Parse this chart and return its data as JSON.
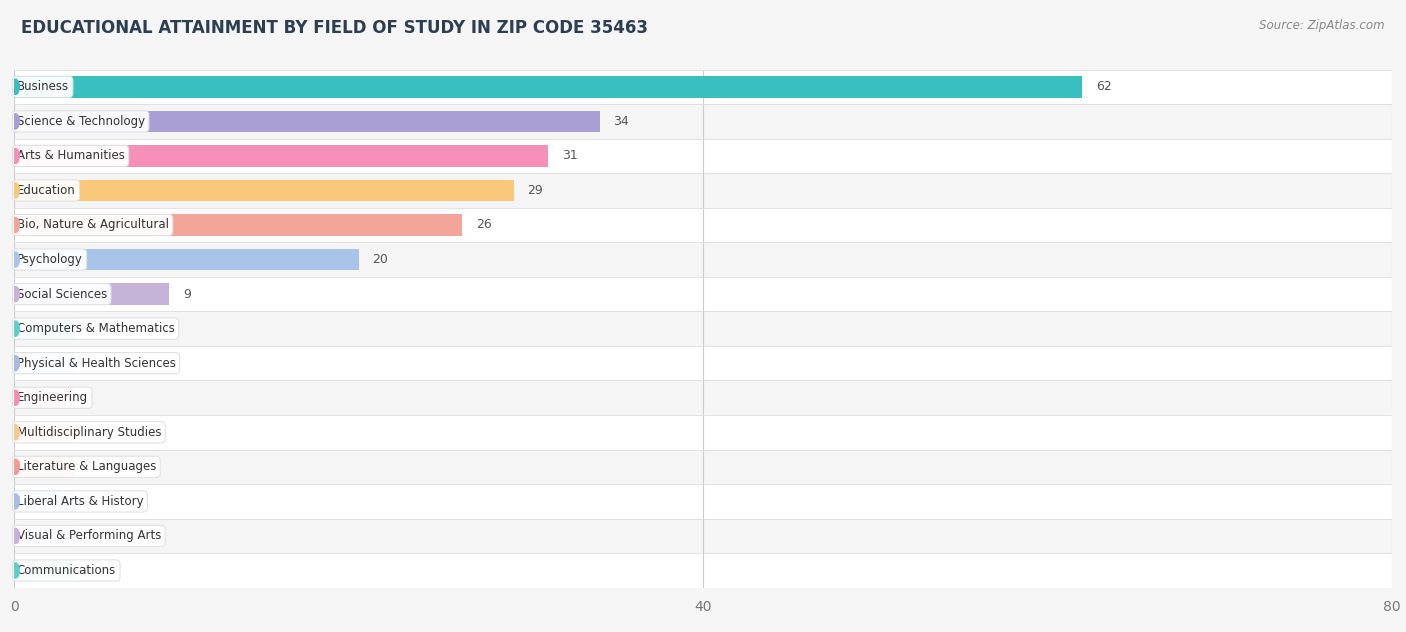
{
  "title": "EDUCATIONAL ATTAINMENT BY FIELD OF STUDY IN ZIP CODE 35463",
  "source": "Source: ZipAtlas.com",
  "categories": [
    "Business",
    "Science & Technology",
    "Arts & Humanities",
    "Education",
    "Bio, Nature & Agricultural",
    "Psychology",
    "Social Sciences",
    "Computers & Mathematics",
    "Physical & Health Sciences",
    "Engineering",
    "Multidisciplinary Studies",
    "Literature & Languages",
    "Liberal Arts & History",
    "Visual & Performing Arts",
    "Communications"
  ],
  "values": [
    62,
    34,
    31,
    29,
    26,
    20,
    9,
    0,
    0,
    0,
    0,
    0,
    0,
    0,
    0
  ],
  "bar_colors": [
    "#38bfbf",
    "#a99fd5",
    "#f591b8",
    "#f9c87a",
    "#f4a59a",
    "#a8c4e8",
    "#c5b3d8",
    "#5ecfcb",
    "#a9b8e0",
    "#f590b5",
    "#f9ca90",
    "#f49898",
    "#a8bce8",
    "#c5b0e0",
    "#5ecfcb"
  ],
  "xlim": [
    0,
    80
  ],
  "xticks": [
    0,
    40,
    80
  ],
  "background_color": "#f5f5f5",
  "title_fontsize": 12,
  "bar_height": 0.62,
  "grid_color": "#cccccc",
  "row_even_color": "#ffffff",
  "row_odd_color": "#f5f5f5"
}
